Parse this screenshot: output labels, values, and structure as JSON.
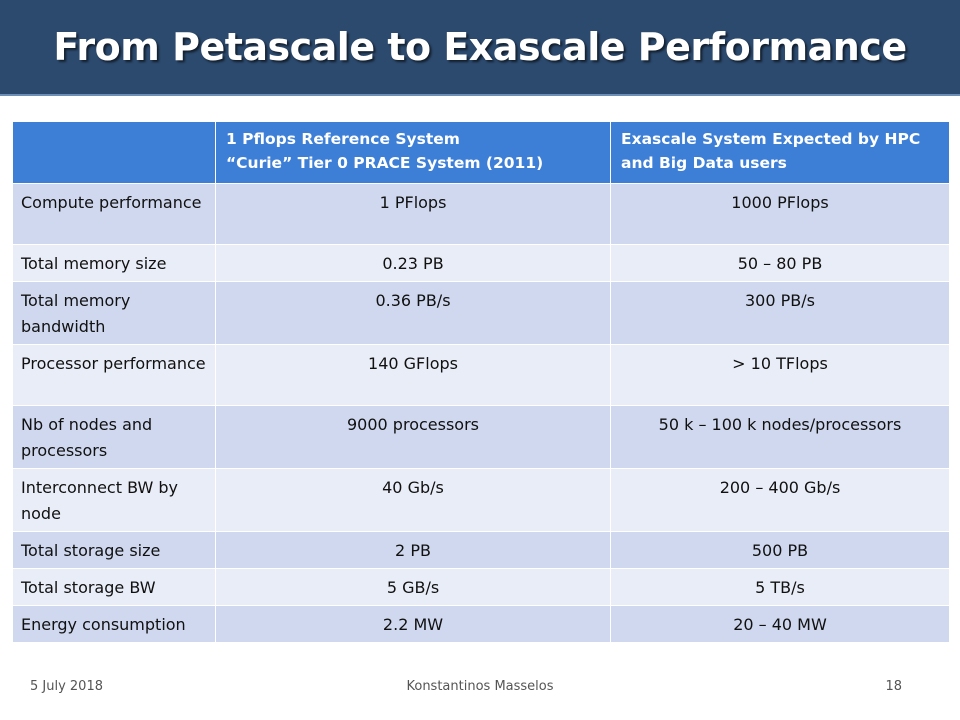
{
  "slide": {
    "title": "From Petascale to Exascale Performance"
  },
  "table": {
    "headers": [
      {
        "lines": [
          ""
        ]
      },
      {
        "lines": [
          "1 Pflops Reference System",
          "“Curie” Tier 0 PRACE System (2011)"
        ]
      },
      {
        "lines": [
          "Exascale System Expected by HPC",
          "and Big Data users"
        ]
      }
    ],
    "rows": [
      {
        "label": "Compute performance",
        "ref": "1 PFlops",
        "exa": "1000 PFlops"
      },
      {
        "label": "Total memory size",
        "ref": "0.23 PB",
        "exa": "50 – 80 PB"
      },
      {
        "label": "Total memory bandwidth",
        "ref": "0.36 PB/s",
        "exa": "300 PB/s"
      },
      {
        "label": "Processor performance",
        "ref": "140 GFlops",
        "exa": "> 10 TFlops"
      },
      {
        "label": "Nb of nodes and processors",
        "ref": "9000 processors",
        "exa": "50 k – 100 k nodes/processors"
      },
      {
        "label": "Interconnect BW by node",
        "ref": "40 Gb/s",
        "exa": "200 – 400 Gb/s"
      },
      {
        "label": "Total storage size",
        "ref": "2 PB",
        "exa": "500 PB"
      },
      {
        "label": "Total storage BW",
        "ref": "5 GB/s",
        "exa": "5 TB/s"
      },
      {
        "label": "Energy consumption",
        "ref": "2.2 MW",
        "exa": "20 – 40 MW"
      }
    ]
  },
  "footer": {
    "date": "5 July 2018",
    "author": "Konstantinos Masselos",
    "page": "18"
  },
  "colors": {
    "title_bar": "#2c4a6e",
    "header_row": "#3d7fd6",
    "row_dark": "#cfd8ee",
    "row_light": "#e9edf7"
  }
}
